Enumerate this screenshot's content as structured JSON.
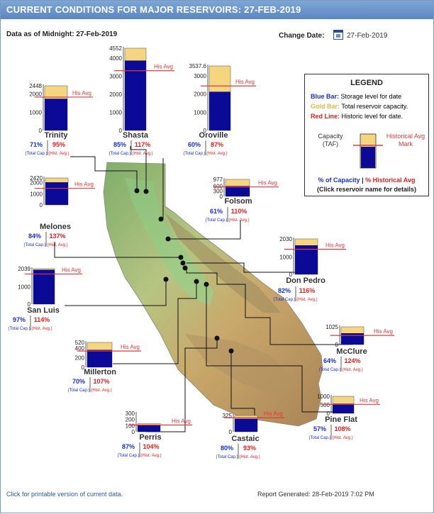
{
  "header": {
    "title": "CURRENT CONDITIONS FOR MAJOR RESERVOIRS: 27-FEB-2019"
  },
  "data_as_of": "Data as of Midnight: 27-Feb-2019",
  "change_date": {
    "label": "Change Date:",
    "value": "27-Feb-2019"
  },
  "legend": {
    "title": "LEGEND",
    "blue_key": "Blue Bar:",
    "blue_desc": "Storage level for date",
    "gold_key": "Gold Bar:",
    "gold_desc": "Total reservoir capacity.",
    "red_key": "Red Line:",
    "red_desc": "Historic level for date.",
    "capacity_label": "Capacity (TAF)",
    "avg_label": "Historical Avg Mark",
    "pct_capacity": "% of Capacity",
    "separator": "|",
    "pct_hist": "% Historical Avg",
    "click_note": "(Click reservoir name for details)"
  },
  "labels": {
    "his_avg": "His Avg",
    "total_cap": "(Total Cap.)",
    "hist_avg": "(Hist. Avg.)"
  },
  "footer": {
    "link": "Click for printable version of current data.",
    "report": "Report Generated: 28-Feb-2019 7:02 PM"
  },
  "colors": {
    "storage": "#0a0a96",
    "capacity": "#f5d57f",
    "hist_line": "#e23a3a",
    "pct_cap": "#1a2fd6",
    "pct_hist": "#e02020",
    "header": "#6b93ca"
  },
  "chart_data": [
    {
      "type": "bar",
      "name": "Trinity",
      "capacity": 2448,
      "pct_capacity": 71,
      "pct_hist_avg": 95,
      "ticks": [
        "2448",
        "2000",
        "1000",
        "0"
      ],
      "tick_values": [
        2448,
        2000,
        1000,
        0
      ],
      "ylim": [
        0,
        2448
      ],
      "pct_capacity_label": "71%",
      "pct_hist_label": "95%"
    },
    {
      "type": "bar",
      "name": "Shasta",
      "capacity": 4552,
      "pct_capacity": 85,
      "pct_hist_avg": 117,
      "ticks": [
        "4552",
        "4000",
        "3000",
        "2000",
        "1000",
        "0"
      ],
      "tick_values": [
        4552,
        4000,
        3000,
        2000,
        1000,
        0
      ],
      "ylim": [
        0,
        4552
      ],
      "pct_capacity_label": "85%",
      "pct_hist_label": "117%"
    },
    {
      "type": "bar",
      "name": "Oroville",
      "capacity": 3537.6,
      "pct_capacity": 60,
      "pct_hist_avg": 87,
      "ticks": [
        "3537.6",
        "3000",
        "2000",
        "1000",
        "0"
      ],
      "tick_values": [
        3537.6,
        3000,
        2000,
        1000,
        0
      ],
      "ylim": [
        0,
        3537.6
      ],
      "pct_capacity_label": "60%",
      "pct_hist_label": "87%"
    },
    {
      "type": "bar",
      "name": "Melones",
      "capacity": 2420,
      "pct_capacity": 84,
      "pct_hist_avg": 137,
      "ticks": [
        "2420",
        "2000",
        "1000",
        "0"
      ],
      "tick_values": [
        2420,
        2000,
        1000,
        0
      ],
      "ylim": [
        0,
        2420
      ],
      "pct_capacity_label": "84%",
      "pct_hist_label": "137%"
    },
    {
      "type": "bar",
      "name": "Folsom",
      "capacity": 977,
      "pct_capacity": 61,
      "pct_hist_avg": 110,
      "ticks": [
        "977",
        "600",
        "300",
        "0"
      ],
      "tick_values": [
        977,
        600,
        300,
        0
      ],
      "ylim": [
        0,
        977
      ],
      "pct_capacity_label": "61%",
      "pct_hist_label": "110%"
    },
    {
      "type": "bar",
      "name": "Don Pedro",
      "capacity": 2030,
      "pct_capacity": 82,
      "pct_hist_avg": 116,
      "ticks": [
        "2030",
        "1000",
        "0"
      ],
      "tick_values": [
        2030,
        1000,
        0
      ],
      "ylim": [
        0,
        2030
      ],
      "pct_capacity_label": "82%",
      "pct_hist_label": "116%"
    },
    {
      "type": "bar",
      "name": "San Luis",
      "capacity": 2039,
      "pct_capacity": 97,
      "pct_hist_avg": 114,
      "ticks": [
        "2039",
        "1000",
        "0"
      ],
      "tick_values": [
        2039,
        1000,
        0
      ],
      "ylim": [
        0,
        2039
      ],
      "pct_capacity_label": "97%",
      "pct_hist_label": "114%"
    },
    {
      "type": "bar",
      "name": "McClure",
      "capacity": 1025,
      "pct_capacity": 64,
      "pct_hist_avg": 124,
      "ticks": [
        "1025",
        "0"
      ],
      "tick_values": [
        1025,
        0
      ],
      "ylim": [
        0,
        1025
      ],
      "pct_capacity_label": "64%",
      "pct_hist_label": "124%"
    },
    {
      "type": "bar",
      "name": "Millerton",
      "capacity": 520,
      "pct_capacity": 70,
      "pct_hist_avg": 107,
      "ticks": [
        "520",
        "400",
        "200",
        "0"
      ],
      "tick_values": [
        520,
        400,
        200,
        0
      ],
      "ylim": [
        0,
        520
      ],
      "pct_capacity_label": "70%",
      "pct_hist_label": "107%"
    },
    {
      "type": "bar",
      "name": "Pine Flat",
      "capacity": 1000,
      "pct_capacity": 57,
      "pct_hist_avg": 108,
      "ticks": [
        "1000",
        "500",
        "0"
      ],
      "tick_values": [
        1000,
        500,
        0
      ],
      "ylim": [
        0,
        1000
      ],
      "pct_capacity_label": "57%",
      "pct_hist_label": "108%"
    },
    {
      "type": "bar",
      "name": "Perris",
      "capacity": 131,
      "pct_capacity": 87,
      "pct_hist_avg": 104,
      "ticks": [
        "300",
        "200",
        "100",
        "0"
      ],
      "tick_values": [
        300,
        200,
        100,
        0
      ],
      "ylim": [
        0,
        300
      ],
      "pct_capacity_label": "87%",
      "pct_hist_label": "104%"
    },
    {
      "type": "bar",
      "name": "Castaic",
      "capacity": 325,
      "pct_capacity": 80,
      "pct_hist_avg": 93,
      "ticks": [
        "325",
        "0"
      ],
      "tick_values": [
        325,
        0
      ],
      "ylim": [
        0,
        325
      ],
      "pct_capacity_label": "80%",
      "pct_hist_label": "93%"
    }
  ]
}
